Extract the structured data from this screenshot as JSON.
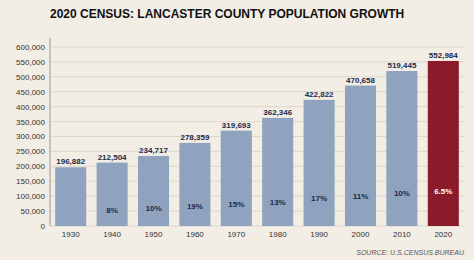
{
  "chart_data": {
    "type": "bar",
    "title": "2020 CENSUS: LANCASTER COUNTY POPULATION GROWTH",
    "annotations": [
      "SOURCE: U.S.CENSUS BUREAU"
    ],
    "categories": [
      "1930",
      "1940",
      "1950",
      "1960",
      "1970",
      "1980",
      "1990",
      "2000",
      "2010",
      "2020"
    ],
    "values": [
      196882,
      212504,
      234717,
      278359,
      319693,
      362346,
      422822,
      470658,
      519445,
      552984
    ],
    "value_labels": [
      "196,882",
      "212,504",
      "234,717",
      "278,359",
      "319,693",
      "362,346",
      "422,822",
      "470,658",
      "519,445",
      "552,984"
    ],
    "growth": [
      null,
      8,
      10,
      19,
      15,
      13,
      17,
      11,
      10,
      6.5
    ],
    "growth_labels": [
      null,
      "8%",
      "10%",
      "19%",
      "15%",
      "13%",
      "17%",
      "11%",
      "10%",
      "6.5%"
    ],
    "colors": [
      "#8fa3bf",
      "#8fa3bf",
      "#8fa3bf",
      "#8fa3bf",
      "#8fa3bf",
      "#8fa3bf",
      "#8fa3bf",
      "#8fa3bf",
      "#8fa3bf",
      "#8b1a2a"
    ],
    "ylim": [
      0,
      630000
    ],
    "yticks": [
      0,
      {
        "value": 50000,
        "label": "50,000"
      },
      {
        "value": 100000,
        "label": "100,000"
      },
      {
        "value": 150000,
        "label": "150,000"
      },
      {
        "value": 200000,
        "label": "200,000"
      },
      {
        "value": 250000,
        "label": "250,000"
      },
      {
        "value": 300000,
        "label": "300,000"
      },
      {
        "value": 350000,
        "label": "350,000"
      },
      {
        "value": 400000,
        "label": "400,000"
      },
      {
        "value": 450000,
        "label": "450,000"
      },
      {
        "value": 500000,
        "label": "500,000"
      },
      {
        "value": 550000,
        "label": "550,000"
      },
      {
        "value": 600000,
        "label": "600,000"
      }
    ],
    "grid": true,
    "data_labels": true
  }
}
